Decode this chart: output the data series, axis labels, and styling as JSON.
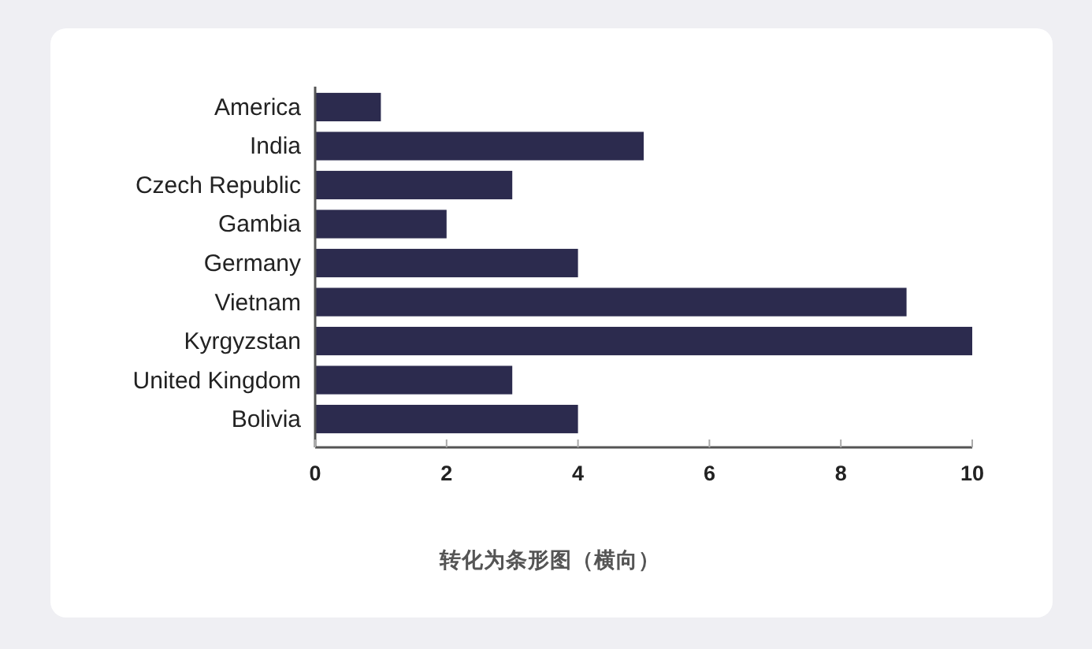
{
  "chart_data": {
    "type": "bar",
    "orientation": "horizontal",
    "categories": [
      "America",
      "India",
      "Czech Republic",
      "Gambia",
      "Germany",
      "Vietnam",
      "Kyrgyzstan",
      "United Kingdom",
      "Bolivia"
    ],
    "values": [
      1,
      5,
      3,
      2,
      4,
      9,
      10,
      3,
      4
    ],
    "color": "#2c2b4e",
    "xlim": [
      0,
      10
    ],
    "xticks": [
      0,
      2,
      4,
      6,
      8,
      10
    ],
    "annotations": [
      "转化为条形图（横向）"
    ]
  }
}
